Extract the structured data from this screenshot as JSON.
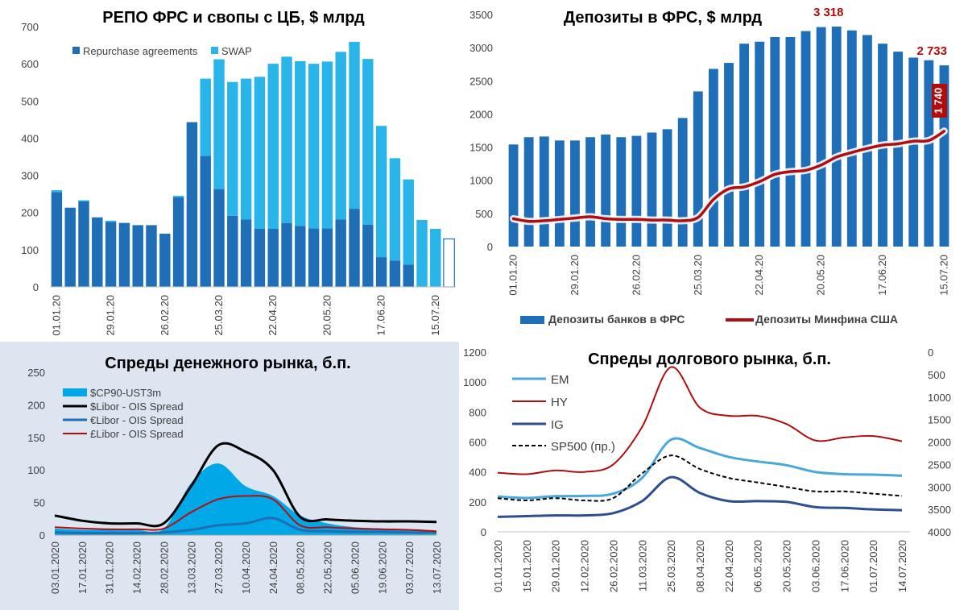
{
  "colors": {
    "repo": "#1f6fb8",
    "swap": "#29b4ea",
    "banks": "#1f6fb8",
    "minfin": "#b20d0d",
    "cp": "#00a8e8",
    "libor_usd": "#000000",
    "libor_eur": "#1e6fb5",
    "libor_gbp": "#b20d0d",
    "em": "#4aa8d8",
    "hy": "#b20d0d",
    "ig": "#2e4f8f",
    "sp500": "#000000",
    "panel3_bg": "#dce5f0"
  },
  "chart_data": [
    {
      "type": "bar",
      "title": "РЕПО ФРС и свопы с ЦБ, $ млрд",
      "ylim": [
        0,
        700
      ],
      "yticks": [
        "0",
        "100",
        "200",
        "300",
        "400",
        "500",
        "600",
        "700"
      ],
      "xtick_labels": [
        "01.01.20",
        "29.01.20",
        "26.02.20",
        "25.03.20",
        "22.04.20",
        "20.05.20",
        "17.06.20",
        "15.07.20"
      ],
      "xtick_index": [
        0,
        4,
        8,
        12,
        16,
        20,
        24,
        28
      ],
      "legend_position": "top-left",
      "series": [
        {
          "name": "Repurchase agreements",
          "values": [
            255,
            213,
            230,
            187,
            175,
            172,
            166,
            166,
            143,
            241,
            443,
            352,
            263,
            191,
            181,
            156,
            156,
            172,
            164,
            157,
            157,
            181,
            210,
            167,
            80,
            71,
            60,
            0,
            0,
            0
          ]
        },
        {
          "name": "SWAP",
          "values": [
            5,
            0,
            3,
            0,
            3,
            0,
            0,
            0,
            0,
            4,
            0,
            208,
            349,
            360,
            379,
            409,
            444,
            447,
            443,
            443,
            449,
            451,
            449,
            446,
            353,
            275,
            229,
            180,
            156,
            0
          ]
        }
      ],
      "last_bar_outline": 129
    },
    {
      "type": "bar",
      "title": "Депозиты в ФРС, $ млрд",
      "ylim": [
        0,
        3500
      ],
      "yticks": [
        "0",
        "500",
        "1000",
        "1500",
        "2000",
        "2500",
        "3000",
        "3500"
      ],
      "xtick_labels": [
        "01.01.20",
        "29.01.20",
        "26.02.20",
        "25.03.20",
        "22.04.20",
        "20.05.20",
        "17.06.20",
        "15.07.20"
      ],
      "xtick_index": [
        0,
        4,
        8,
        12,
        16,
        20,
        24,
        28
      ],
      "legend_position": "bottom",
      "series": [
        {
          "name": "Депозиты банков в ФРС",
          "values": [
            1540,
            1650,
            1660,
            1600,
            1600,
            1650,
            1690,
            1650,
            1670,
            1720,
            1770,
            1940,
            2340,
            2680,
            2770,
            3060,
            3090,
            3160,
            3160,
            3250,
            3310,
            3318,
            3260,
            3190,
            3060,
            2940,
            2850,
            2810,
            2733
          ]
        },
        {
          "name": "Депозиты Минфина США",
          "values": [
            420,
            380,
            390,
            410,
            430,
            450,
            420,
            410,
            410,
            400,
            400,
            390,
            440,
            710,
            870,
            900,
            980,
            1090,
            1130,
            1150,
            1230,
            1350,
            1420,
            1480,
            1530,
            1550,
            1590,
            1600,
            1740
          ],
          "type": "line"
        }
      ],
      "data_labels": [
        "3 318",
        "2 733",
        "1 740"
      ]
    },
    {
      "type": "area",
      "title": "Спреды денежного рынка, б.п.",
      "ylim": [
        0,
        250
      ],
      "yticks": [
        "0",
        "50",
        "100",
        "150",
        "200",
        "250"
      ],
      "x": [
        "03.01.2020",
        "17.01.2020",
        "31.01.2020",
        "14.02.2020",
        "28.02.2020",
        "13.03.2020",
        "27.03.2020",
        "10.04.2020",
        "24.04.2020",
        "08.05.2020",
        "22.05.2020",
        "05.06.2020",
        "19.06.2020",
        "03.07.2020",
        "13.07.2020"
      ],
      "legend_position": "top-left",
      "series": [
        {
          "name": "$CP90-UST3m",
          "type": "area",
          "values": [
            10,
            8,
            8,
            8,
            10,
            80,
            110,
            75,
            60,
            30,
            18,
            12,
            10,
            8,
            6
          ]
        },
        {
          "name": "$Libor - OIS Spread",
          "type": "line",
          "values": [
            30,
            22,
            18,
            18,
            18,
            75,
            138,
            128,
            100,
            28,
            24,
            22,
            21,
            21,
            20
          ]
        },
        {
          "name": "€Libor - OIS Spread",
          "type": "line",
          "values": [
            4,
            3,
            3,
            3,
            4,
            8,
            15,
            18,
            26,
            8,
            6,
            5,
            5,
            4,
            4
          ]
        },
        {
          "name": "£Libor - OIS Spread",
          "type": "line",
          "values": [
            12,
            10,
            9,
            9,
            10,
            35,
            55,
            60,
            55,
            15,
            12,
            10,
            9,
            8,
            6
          ]
        }
      ]
    },
    {
      "type": "line",
      "title": "Спреды долгового рынка, б.п.",
      "ylim": [
        0,
        1200
      ],
      "y2lim": [
        0,
        4000
      ],
      "y2_inverted": true,
      "yticks": [
        "0",
        "200",
        "400",
        "600",
        "800",
        "1000",
        "1200"
      ],
      "y2ticks": [
        "0",
        "500",
        "1000",
        "1500",
        "2000",
        "2500",
        "3000",
        "3500",
        "4000"
      ],
      "x": [
        "01.01.2020",
        "15.01.2020",
        "29.01.2020",
        "12.02.2020",
        "26.02.2020",
        "11.03.2020",
        "25.03.2020",
        "08.04.2020",
        "22.04.2020",
        "06.05.2020",
        "20.05.2020",
        "03.06.2020",
        "17.06.2020",
        "01.07.2020",
        "14.07.2020"
      ],
      "legend_position": "top-left",
      "series": [
        {
          "name": "EM",
          "values": [
            236,
            226,
            238,
            240,
            255,
            360,
            615,
            560,
            500,
            470,
            445,
            400,
            385,
            382,
            375
          ]
        },
        {
          "name": "HY",
          "values": [
            395,
            385,
            410,
            400,
            450,
            700,
            1100,
            830,
            775,
            775,
            720,
            610,
            630,
            640,
            605
          ]
        },
        {
          "name": "IG",
          "values": [
            100,
            105,
            110,
            110,
            125,
            205,
            365,
            260,
            205,
            205,
            200,
            165,
            160,
            150,
            145
          ]
        },
        {
          "name": "SP500 (пр.)",
          "axis": "right",
          "values": [
            3250,
            3300,
            3250,
            3300,
            3250,
            2700,
            2300,
            2600,
            2800,
            2900,
            3000,
            3100,
            3100,
            3150,
            3200
          ]
        }
      ]
    }
  ]
}
